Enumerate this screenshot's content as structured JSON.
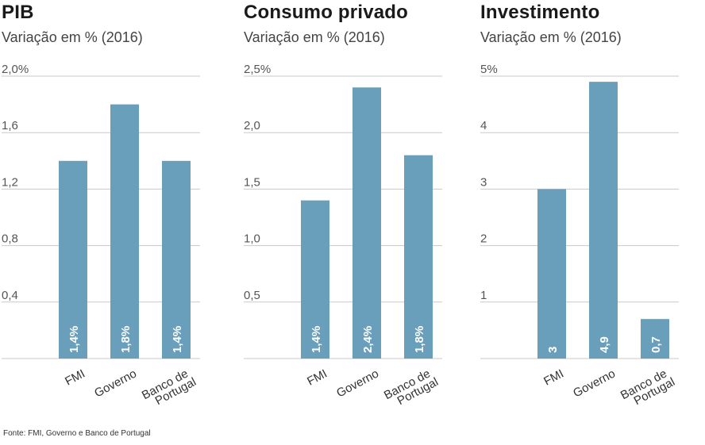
{
  "source_note": "Fonte: FMI, Governo e Banco de Portugal",
  "colors": {
    "bar": "#6a9fbb",
    "grid": "#c9c9c9",
    "axis_text": "#555555",
    "label": "#ffffff"
  },
  "chart_data": [
    {
      "type": "bar",
      "title": "PIB",
      "subtitle": "Variação em % (2016)",
      "categories": [
        [
          "FMI"
        ],
        [
          "Governo"
        ],
        [
          "Banco de",
          "Portugal"
        ]
      ],
      "values": [
        1.4,
        1.8,
        1.4
      ],
      "value_labels": [
        "1,4%",
        "1,8%",
        "1,4%"
      ],
      "ylim": [
        0,
        2.0
      ],
      "yticks": [
        0.4,
        0.8,
        1.2,
        1.6,
        2.0
      ],
      "ytick_labels": [
        "0,4",
        "0,8",
        "1,2",
        "1,6",
        "2,0%"
      ]
    },
    {
      "type": "bar",
      "title": "Consumo privado",
      "subtitle": "Variação em % (2016)",
      "categories": [
        [
          "FMI"
        ],
        [
          "Governo"
        ],
        [
          "Banco de",
          "Portugal"
        ]
      ],
      "values": [
        1.4,
        2.4,
        1.8
      ],
      "value_labels": [
        "1,4%",
        "2,4%",
        "1,8%"
      ],
      "ylim": [
        0,
        2.5
      ],
      "yticks": [
        0.5,
        1.0,
        1.5,
        2.0,
        2.5
      ],
      "ytick_labels": [
        "0,5",
        "1,0",
        "1,5",
        "2,0",
        "2,5%"
      ]
    },
    {
      "type": "bar",
      "title": "Investimento",
      "subtitle": "Variação em % (2016)",
      "categories": [
        [
          "FMI"
        ],
        [
          "Governo"
        ],
        [
          "Banco de",
          "Portugal"
        ]
      ],
      "values": [
        3,
        4.9,
        0.7
      ],
      "value_labels": [
        "3",
        "4,9",
        "0,7"
      ],
      "ylim": [
        0,
        5
      ],
      "yticks": [
        1,
        2,
        3,
        4,
        5
      ],
      "ytick_labels": [
        "1",
        "2",
        "3",
        "4",
        "5%"
      ]
    }
  ]
}
